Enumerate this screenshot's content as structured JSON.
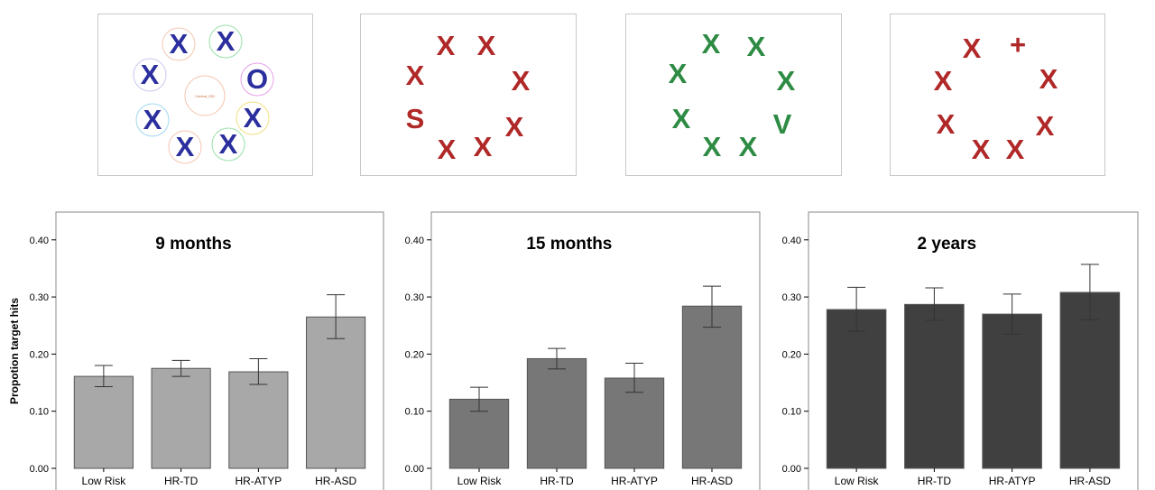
{
  "stimuli": [
    {
      "color": "#2b2f9e",
      "letters": [
        "X",
        "X",
        "O",
        "X",
        "X",
        "X",
        "X",
        "X"
      ],
      "center_label": "Central_ISD",
      "ring_colors": [
        "#f5c6b0",
        "#98e0a8",
        "#e8a0e8",
        "#c8c8f0",
        "#f0e080",
        "#a0d8f0"
      ]
    },
    {
      "color": "#b02828",
      "letters": [
        "X",
        "X",
        "X",
        "X",
        "X",
        "S",
        "X",
        "X"
      ]
    },
    {
      "color": "#2e8b44",
      "letters": [
        "X",
        "X",
        "X",
        "X",
        "V",
        "X",
        "X",
        "X"
      ]
    },
    {
      "color": "#b02828",
      "letters": [
        "X",
        "+",
        "X",
        "X",
        "X",
        "X",
        "X",
        "X"
      ]
    }
  ],
  "ylabel": "Propotion target hits",
  "chart_data": [
    {
      "type": "bar",
      "title": "9 months",
      "categories": [
        "Low Risk",
        "HR-TD",
        "HR-ATYP",
        "HR-ASD"
      ],
      "values": [
        0.161,
        0.175,
        0.169,
        0.265
      ],
      "error_low": [
        0.143,
        0.161,
        0.147,
        0.227
      ],
      "error_high": [
        0.18,
        0.189,
        0.192,
        0.304
      ],
      "ylim": [
        0,
        0.45
      ],
      "yticks": [
        "0.00",
        "0.10",
        "0.20",
        "0.30",
        "0.40"
      ],
      "bar_color": "#a8a8a8",
      "grid": false
    },
    {
      "type": "bar",
      "title": "15 months",
      "categories": [
        "Low Risk",
        "HR-TD",
        "HR-ATYP",
        "HR-ASD"
      ],
      "values": [
        0.121,
        0.192,
        0.158,
        0.284
      ],
      "error_low": [
        0.1,
        0.174,
        0.133,
        0.247
      ],
      "error_high": [
        0.142,
        0.21,
        0.184,
        0.319
      ],
      "ylim": [
        0,
        0.45
      ],
      "yticks": [
        "0.00",
        "0.10",
        "0.20",
        "0.30",
        "0.40"
      ],
      "bar_color": "#777777",
      "grid": false
    },
    {
      "type": "bar",
      "title": "2 years",
      "categories": [
        "Low Risk",
        "HR-TD",
        "HR-ATYP",
        "HR-ASD"
      ],
      "values": [
        0.278,
        0.287,
        0.27,
        0.308
      ],
      "error_low": [
        0.24,
        0.259,
        0.235,
        0.26
      ],
      "error_high": [
        0.317,
        0.316,
        0.305,
        0.357
      ],
      "ylim": [
        0,
        0.45
      ],
      "yticks": [
        "0.00",
        "0.10",
        "0.20",
        "0.30",
        "0.40"
      ],
      "bar_color": "#404040",
      "grid": false
    }
  ]
}
